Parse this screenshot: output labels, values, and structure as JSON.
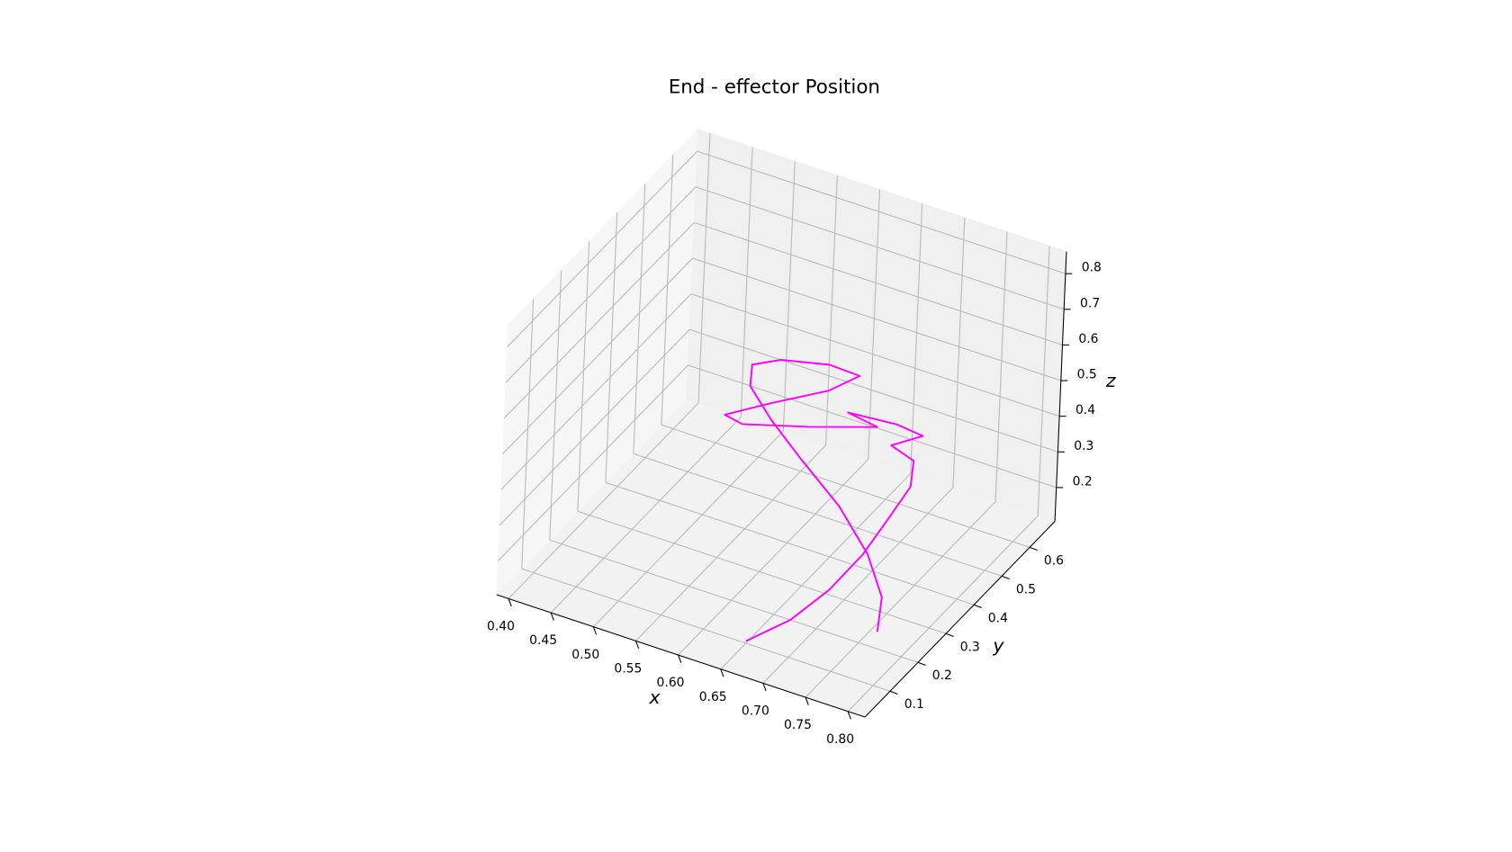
{
  "chart_data": {
    "type": "line3d",
    "title": "End - effector Position",
    "xlabel": "x",
    "ylabel": "y",
    "zlabel": "z",
    "xlabel_color": "#ff0000",
    "ylabel_color": "#008000",
    "zlabel_color": "#0000ff",
    "color": "#ff00ff",
    "grid": true,
    "x": [
      0.765,
      0.753,
      0.725,
      0.68,
      0.623,
      0.578,
      0.543,
      0.535,
      0.559,
      0.609,
      0.645,
      0.616,
      0.559,
      0.515,
      0.542,
      0.62,
      0.699,
      0.658,
      0.715,
      0.746,
      0.716,
      0.749,
      0.756,
      0.746,
      0.729,
      0.707,
      0.676,
      0.651
    ],
    "y": [
      0.22,
      0.27,
      0.3,
      0.33,
      0.36,
      0.39,
      0.42,
      0.45,
      0.48,
      0.5,
      0.5,
      0.48,
      0.45,
      0.42,
      0.4,
      0.4,
      0.4,
      0.42,
      0.42,
      0.42,
      0.4,
      0.38,
      0.35,
      0.3,
      0.27,
      0.22,
      0.18,
      0.1
    ],
    "z": [
      0.133,
      0.178,
      0.253,
      0.328,
      0.394,
      0.442,
      0.484,
      0.513,
      0.521,
      0.531,
      0.528,
      0.48,
      0.424,
      0.381,
      0.392,
      0.446,
      0.508,
      0.5,
      0.512,
      0.504,
      0.47,
      0.469,
      0.426,
      0.364,
      0.28,
      0.203,
      0.127,
      0.113
    ],
    "xlim": [
      0.386,
      0.82
    ],
    "ylim": [
      0.01,
      0.69
    ],
    "zlim": [
      0.105,
      0.862
    ],
    "xticks": [
      {
        "value": 0.4,
        "label": "0.40"
      },
      0.45,
      {
        "value": 0.5,
        "label": "0.50"
      },
      0.55,
      {
        "value": 0.6,
        "label": "0.60"
      },
      0.65,
      {
        "value": 0.7,
        "label": "0.70"
      },
      0.75,
      {
        "value": 0.8,
        "label": "0.80"
      }
    ],
    "yticks": [
      0.1,
      0.2,
      0.3,
      0.4,
      0.5,
      0.6
    ],
    "zticks": [
      0.2,
      0.3,
      0.4,
      0.5,
      0.6,
      0.7,
      0.8
    ]
  }
}
